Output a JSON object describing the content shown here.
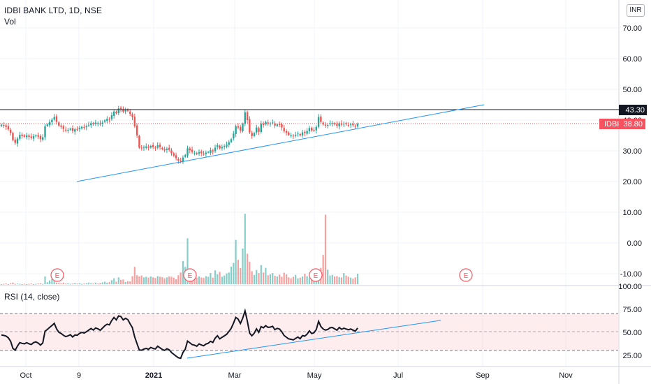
{
  "header": {
    "title": "IDBI BANK LTD, 1D, NSE",
    "volume_label": "Vol",
    "currency": "INR"
  },
  "rsi": {
    "label": "RSI (14, close)",
    "ticks": [
      "75.00",
      "50.00",
      "25.00"
    ],
    "top_tick": "100.00",
    "overbought": 70,
    "oversold": 30,
    "band_color": "#f7525f"
  },
  "price_axis": {
    "ticks": [
      "70.00",
      "60.00",
      "50.00",
      "40.00",
      "30.00",
      "20.00"
    ]
  },
  "volume_axis": {
    "ticks": [
      "10.00",
      "0.00",
      "-10.00"
    ]
  },
  "time_axis": {
    "labels": [
      "Oct",
      "9",
      "2021",
      "Mar",
      "May",
      "Jul",
      "Sep",
      "Nov"
    ],
    "bold_label": "2021"
  },
  "price_labels": {
    "resistance": "43.30",
    "last": "IDBI  38.80",
    "resistance_color": "#131722",
    "last_color": "#f7525f"
  },
  "earnings_markers": [
    "E",
    "E",
    "E",
    "E"
  ],
  "colors": {
    "up": "#26a69a",
    "down": "#ef5350",
    "trendline": "#2196f3",
    "grid": "#f0f3fa"
  },
  "chart_data": {
    "type": "candlestick",
    "symbol": "IDBI BANK LTD",
    "interval": "1D",
    "exchange": "NSE",
    "price_range": [
      17,
      74
    ],
    "resistance_level": 43.3,
    "last_price": 38.8,
    "price_trendline": [
      [
        20.0,
        45.0
      ]
    ],
    "rsi_trendline": [
      [
        22,
        63
      ]
    ],
    "rsi_range": [
      18,
      100
    ],
    "volume_range": [
      -14,
      13
    ],
    "close_path": [
      38.5,
      38.2,
      37.8,
      37.0,
      35.8,
      33.5,
      32.6,
      34.0,
      35.2,
      34.8,
      34.6,
      35.0,
      34.5,
      34.2,
      34.8,
      35.0,
      34.6,
      33.8,
      34.4,
      38.0,
      38.6,
      39.4,
      40.1,
      41.0,
      39.4,
      38.2,
      37.8,
      37.1,
      36.6,
      36.8,
      37.2,
      36.4,
      37.0,
      36.9,
      37.5,
      37.8,
      37.6,
      38.0,
      38.5,
      39.0,
      38.6,
      39.2,
      39.0,
      38.6,
      39.2,
      39.9,
      40.4,
      40.2,
      41.6,
      42.8,
      42.2,
      43.8,
      43.6,
      42.8,
      43.3,
      43.0,
      42.0,
      41.0,
      38.0,
      35.0,
      31.0,
      30.8,
      31.2,
      31.4,
      31.0,
      31.6,
      31.2,
      31.0,
      31.8,
      31.2,
      30.6,
      30.2,
      30.7,
      30.3,
      29.2,
      28.4,
      27.6,
      26.8,
      26.5,
      27.8,
      28.6,
      30.8,
      30.2,
      29.6,
      29.4,
      29.0,
      29.6,
      29.2,
      28.9,
      29.4,
      29.6,
      30.2,
      29.8,
      31.0,
      31.8,
      30.8,
      31.2,
      31.6,
      32.0,
      32.8,
      33.8,
      35.6,
      38.0,
      37.6,
      36.6,
      38.8,
      42.5,
      40.0,
      36.0,
      34.8,
      35.8,
      37.6,
      36.2,
      38.8,
      38.4,
      39.4,
      38.8,
      38.9,
      39.2,
      38.2,
      38.6,
      38.4,
      37.6,
      36.4,
      35.8,
      35.2,
      35.0,
      34.8,
      35.2,
      35.6,
      35.0,
      36.0,
      35.8,
      36.4,
      37.4,
      36.6,
      36.8,
      37.8,
      41.0,
      39.4,
      38.6,
      38.2,
      38.4,
      38.9,
      39.0,
      38.6,
      38.2,
      39.0,
      38.5,
      38.8,
      38.6,
      38.4,
      38.6,
      38.3,
      38.0,
      38.8
    ],
    "rsi_values": [
      47.1,
      46.7,
      46.0,
      44.1,
      40.3,
      32.6,
      30.5,
      35.1,
      38.9,
      38.0,
      37.6,
      38.8,
      37.6,
      36.8,
      38.9,
      39.6,
      38.4,
      36.1,
      38.4,
      51.3,
      53.1,
      55.4,
      57.4,
      59.8,
      53.8,
      50.0,
      48.8,
      46.8,
      45.4,
      46.1,
      47.4,
      45.0,
      47.1,
      46.8,
      48.9,
      49.9,
      49.2,
      50.6,
      52.4,
      54.2,
      52.5,
      54.7,
      53.9,
      52.2,
      54.6,
      57.2,
      58.9,
      58.1,
      62.7,
      66.1,
      63.5,
      67.8,
      67.1,
      63.5,
      65.2,
      63.8,
      59.2,
      55.1,
      45.1,
      37.8,
      30.9,
      30.6,
      31.9,
      32.6,
      31.6,
      33.6,
      32.6,
      32.0,
      34.9,
      33.2,
      31.5,
      30.4,
      32.2,
      31.1,
      28.1,
      26.1,
      24.2,
      22.4,
      21.8,
      28.1,
      31.7,
      40.5,
      38.6,
      36.7,
      36.1,
      34.9,
      37.4,
      36.3,
      35.4,
      37.3,
      38.1,
      40.3,
      39.0,
      43.6,
      46.4,
      42.9,
      44.6,
      46.2,
      47.8,
      50.9,
      54.4,
      60.0,
      66.2,
      64.3,
      59.6,
      65.4,
      73.3,
      62.2,
      49.1,
      46.2,
      49.0,
      53.8,
      49.9,
      56.2,
      54.9,
      57.3,
      55.4,
      55.7,
      56.6,
      52.9,
      54.3,
      53.6,
      50.7,
      46.6,
      44.7,
      42.9,
      42.4,
      41.8,
      43.4,
      44.9,
      43.0,
      46.5,
      45.8,
      48.0,
      51.6,
      48.7,
      49.5,
      53.0,
      62.0,
      56.3,
      53.7,
      52.4,
      53.1,
      54.9,
      55.3,
      53.8,
      52.3,
      55.3,
      53.3,
      54.5,
      53.6,
      52.8,
      53.6,
      52.4,
      51.2,
      54.6
    ],
    "volume_values": [
      -13.4,
      -13.3,
      -13.2,
      -13.4,
      -13.1,
      -12.9,
      -13.3,
      -13.2,
      -13.3,
      -13.4,
      -13.3,
      -13.4,
      -13.3,
      -13.2,
      -13.4,
      -13.3,
      -13.2,
      -13.1,
      -13.3,
      -10.9,
      -12.8,
      -12.2,
      -11.8,
      -12.4,
      -12.9,
      -13.0,
      -13.1,
      -12.9,
      -13.2,
      -13.1,
      -13.3,
      -13.2,
      -13.0,
      -13.2,
      -13.1,
      -13.3,
      -13.2,
      -13.1,
      -12.9,
      -13.1,
      -13.2,
      -12.9,
      -13.2,
      -13.0,
      -12.8,
      -12.6,
      -12.9,
      -12.7,
      -12.1,
      -11.5,
      -12.6,
      -11.2,
      -12.0,
      -11.9,
      -12.7,
      -12.4,
      -12.5,
      -10.8,
      -7.8,
      -10.5,
      -10.9,
      -10.6,
      -11.2,
      -11.0,
      -11.3,
      -10.9,
      -11.2,
      -11.4,
      -10.8,
      -11.0,
      -11.1,
      -11.5,
      -11.2,
      -10.9,
      -11.0,
      -11.3,
      -11.8,
      -10.5,
      -9.6,
      -5.9,
      -7.8,
      1.5,
      -8.8,
      -10.7,
      -10.9,
      -11.3,
      -10.9,
      -11.2,
      -11.4,
      -10.8,
      -11.0,
      -9.8,
      -11.3,
      -8.9,
      -10.2,
      -9.4,
      -11.0,
      -10.6,
      -9.9,
      -9.6,
      -7.7,
      -6.5,
      1.0,
      -5.5,
      -8.2,
      -1.8,
      9.5,
      -3.5,
      -6.1,
      -9.2,
      -10.4,
      -8.8,
      -9.8,
      -7.2,
      -9.6,
      -8.1,
      -10.5,
      -10.2,
      -9.8,
      -10.7,
      -10.9,
      -10.3,
      -11.0,
      -9.7,
      -10.2,
      -11.2,
      -11.5,
      -11.0,
      -10.4,
      -11.5,
      -11.3,
      -10.9,
      -10.0,
      -10.8,
      -11.4,
      -9.2,
      -10.7,
      -10.6,
      -10.0,
      -8.1,
      -3.9,
      9.2,
      -8.7,
      -10.6,
      -10.4,
      -10.9,
      -10.8,
      -11.1,
      -11.2,
      -9.8,
      -10.6,
      -11.0,
      -11.3,
      -11.6,
      -11.2,
      -10.0
    ]
  }
}
